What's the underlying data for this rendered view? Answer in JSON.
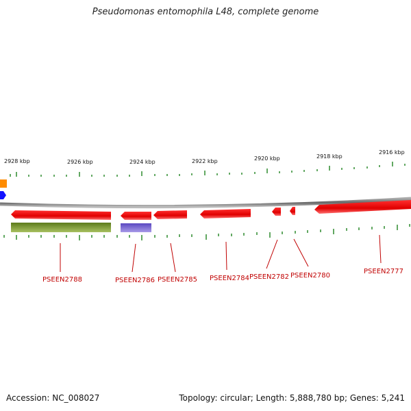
{
  "title": "Pseudomonas entomophila L48, complete genome",
  "footer": {
    "accession": "Accession: NC_008027",
    "summary": "Topology: circular; Length: 5,888,780 bp; Genes: 5,241"
  },
  "scale_labels": [
    "2928 kbp",
    "2926 kbp",
    "2924 kbp",
    "2922 kbp",
    "2920 kbp",
    "2918 kbp",
    "2916 kbp"
  ],
  "gene_labels": [
    "PSEEN2788",
    "PSEEN2786",
    "PSEEN2785",
    "PSEEN2784",
    "PSEEN2782",
    "PSEEN2780",
    "PSEEN2777"
  ],
  "colors": {
    "forward_gene": "#ee1111",
    "reverse_gene_green": "#6b8e23",
    "reverse_gene_blue": "#6a5acd",
    "partial_orange": "#ff8c00",
    "partial_blue": "#1111ff",
    "backbone": "#888888",
    "tick": "#2e8b2e",
    "label": "#c00000"
  }
}
